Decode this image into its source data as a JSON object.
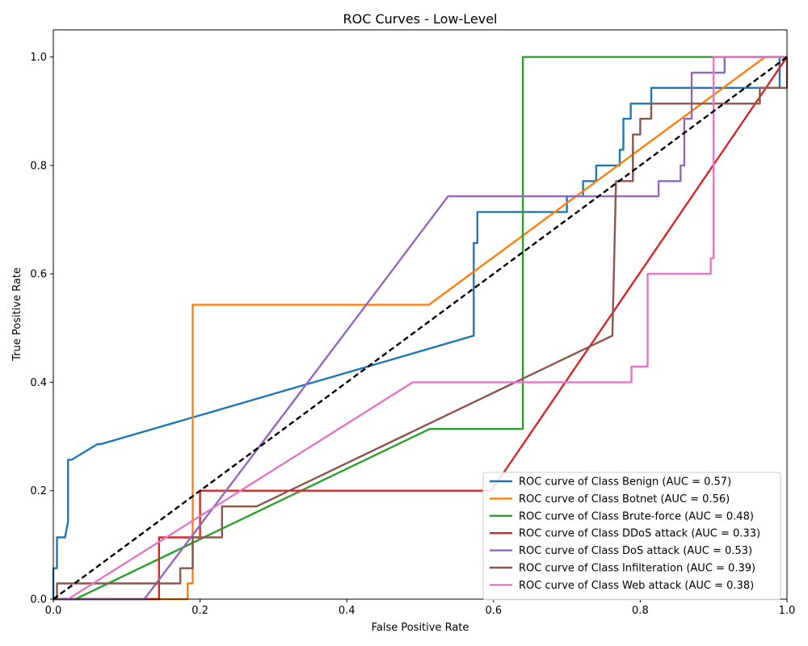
{
  "chart_data": {
    "type": "line",
    "title": "ROC Curves - Low-Level",
    "xlabel": "False Positive Rate",
    "ylabel": "True Positive Rate",
    "xlim": [
      0.0,
      1.0
    ],
    "ylim": [
      0.0,
      1.05
    ],
    "xticks": [
      "0.0",
      "0.2",
      "0.4",
      "0.6",
      "0.8",
      "1.0"
    ],
    "yticks": [
      "0.0",
      "0.2",
      "0.4",
      "0.6",
      "0.8",
      "1.0"
    ],
    "grid": false,
    "legend_position": "lower-right",
    "series": [
      {
        "name": "ROC curve of Class Benign (AUC = 0.57)",
        "color": "#1f77b4",
        "points": [
          [
            0,
            0
          ],
          [
            0,
            0.057
          ],
          [
            0.005,
            0.057
          ],
          [
            0.005,
            0.114
          ],
          [
            0.016,
            0.114
          ],
          [
            0.02,
            0.143
          ],
          [
            0.02,
            0.257
          ],
          [
            0.025,
            0.257
          ],
          [
            0.06,
            0.286
          ],
          [
            0.065,
            0.286
          ],
          [
            0.573,
            0.486
          ],
          [
            0.573,
            0.657
          ],
          [
            0.578,
            0.657
          ],
          [
            0.578,
            0.714
          ],
          [
            0.7,
            0.714
          ],
          [
            0.7,
            0.743
          ],
          [
            0.722,
            0.743
          ],
          [
            0.722,
            0.771
          ],
          [
            0.74,
            0.771
          ],
          [
            0.74,
            0.8
          ],
          [
            0.772,
            0.8
          ],
          [
            0.772,
            0.829
          ],
          [
            0.777,
            0.829
          ],
          [
            0.777,
            0.886
          ],
          [
            0.787,
            0.886
          ],
          [
            0.787,
            0.914
          ],
          [
            0.815,
            0.914
          ],
          [
            0.815,
            0.943
          ],
          [
            0.99,
            0.943
          ],
          [
            0.99,
            1.0
          ],
          [
            1.0,
            1.0
          ]
        ]
      },
      {
        "name": "ROC curve of Class Botnet (AUC = 0.56)",
        "color": "#ff7f0e",
        "points": [
          [
            0,
            0
          ],
          [
            0.183,
            0
          ],
          [
            0.183,
            0.029
          ],
          [
            0.19,
            0.029
          ],
          [
            0.19,
            0.543
          ],
          [
            0.512,
            0.543
          ],
          [
            0.97,
            1.0
          ],
          [
            1.0,
            1.0
          ]
        ]
      },
      {
        "name": "ROC curve of Class Brute-force (AUC = 0.48)",
        "color": "#2ca02c",
        "points": [
          [
            0,
            0
          ],
          [
            0.03,
            0
          ],
          [
            0.513,
            0.314
          ],
          [
            0.64,
            0.314
          ],
          [
            0.64,
            1.0
          ],
          [
            1.0,
            1.0
          ]
        ]
      },
      {
        "name": "ROC curve of Class DDoS attack (AUC = 0.33)",
        "color": "#d62728",
        "points": [
          [
            0,
            0
          ],
          [
            0.144,
            0
          ],
          [
            0.144,
            0.114
          ],
          [
            0.2,
            0.114
          ],
          [
            0.2,
            0.2
          ],
          [
            0.597,
            0.2
          ],
          [
            1.0,
            1.0
          ]
        ]
      },
      {
        "name": "ROC curve of Class DoS attack (AUC = 0.53)",
        "color": "#9467bd",
        "points": [
          [
            0,
            0
          ],
          [
            0.124,
            0
          ],
          [
            0.538,
            0.743
          ],
          [
            0.825,
            0.743
          ],
          [
            0.825,
            0.771
          ],
          [
            0.855,
            0.771
          ],
          [
            0.855,
            0.8
          ],
          [
            0.86,
            0.8
          ],
          [
            0.86,
            0.886
          ],
          [
            0.87,
            0.886
          ],
          [
            0.87,
            0.971
          ],
          [
            0.915,
            0.971
          ],
          [
            0.915,
            1.0
          ],
          [
            1.0,
            1.0
          ]
        ]
      },
      {
        "name": "ROC curve of Class Infilteration (AUC = 0.39)",
        "color": "#8c564b",
        "points": [
          [
            0,
            0
          ],
          [
            0.005,
            0
          ],
          [
            0.005,
            0.029
          ],
          [
            0.173,
            0.029
          ],
          [
            0.173,
            0.057
          ],
          [
            0.19,
            0.057
          ],
          [
            0.19,
            0.114
          ],
          [
            0.23,
            0.114
          ],
          [
            0.23,
            0.171
          ],
          [
            0.277,
            0.171
          ],
          [
            0.762,
            0.486
          ],
          [
            0.767,
            0.771
          ],
          [
            0.79,
            0.771
          ],
          [
            0.79,
            0.857
          ],
          [
            0.8,
            0.857
          ],
          [
            0.8,
            0.886
          ],
          [
            0.815,
            0.886
          ],
          [
            0.815,
            0.914
          ],
          [
            0.963,
            0.914
          ],
          [
            0.963,
            0.943
          ],
          [
            1.0,
            0.943
          ],
          [
            1.0,
            1.0
          ]
        ]
      },
      {
        "name": "ROC curve of Class Web attack (AUC = 0.38)",
        "color": "#e377c2",
        "points": [
          [
            0.02,
            0
          ],
          [
            0.49,
            0.4
          ],
          [
            0.788,
            0.4
          ],
          [
            0.788,
            0.429
          ],
          [
            0.81,
            0.429
          ],
          [
            0.81,
            0.6
          ],
          [
            0.896,
            0.6
          ],
          [
            0.896,
            0.629
          ],
          [
            0.9,
            0.629
          ],
          [
            0.9,
            1.0
          ],
          [
            1.0,
            1.0
          ]
        ]
      }
    ],
    "reference_line": {
      "style": "dashed",
      "color": "#000000",
      "points": [
        [
          0,
          0
        ],
        [
          1,
          1
        ]
      ]
    }
  }
}
